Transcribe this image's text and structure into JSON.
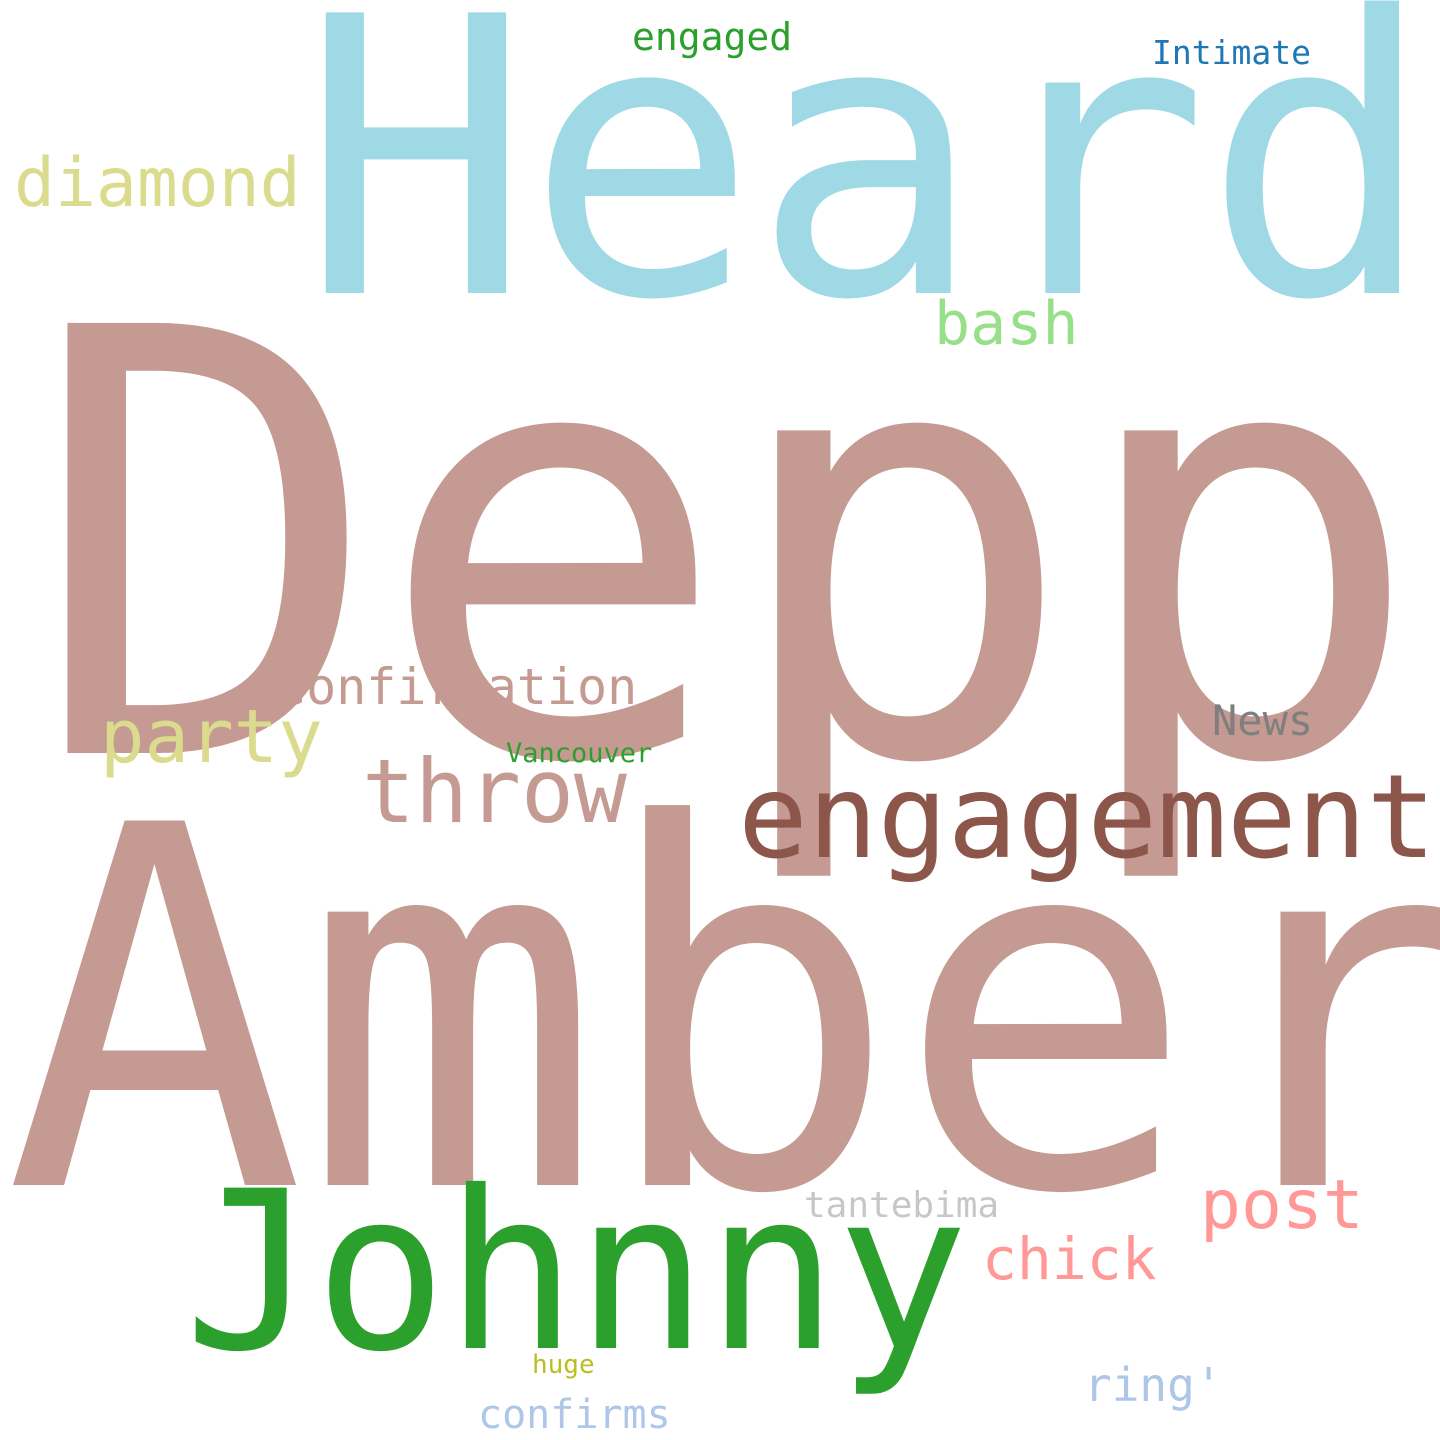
{
  "words": [
    {
      "key": "depp",
      "text": "Depp",
      "color": "#c49a92"
    },
    {
      "key": "amber",
      "text": "Amber",
      "color": "#c49a92"
    },
    {
      "key": "heard",
      "text": "Heard",
      "color": "#9fd9e5"
    },
    {
      "key": "johnny",
      "text": "Johnny",
      "color": "#2ca02c"
    },
    {
      "key": "engagement",
      "text": "engagement",
      "color": "#8c564b"
    },
    {
      "key": "throw",
      "text": "throw",
      "color": "#c49a92"
    },
    {
      "key": "post",
      "text": "post",
      "color": "#ff9896"
    },
    {
      "key": "party",
      "text": "party",
      "color": "#dbdb8d"
    },
    {
      "key": "chick",
      "text": "chick",
      "color": "#ff9896"
    },
    {
      "key": "diamond",
      "text": "diamond",
      "color": "#dbdb8d"
    },
    {
      "key": "confirmation",
      "text": "confirmation",
      "color": "#c49a92"
    },
    {
      "key": "bash",
      "text": "bash",
      "color": "#98df8a"
    },
    {
      "key": "ring",
      "text": "ring'",
      "color": "#aec7e8"
    },
    {
      "key": "confirms",
      "text": "confirms",
      "color": "#aec7e8"
    },
    {
      "key": "news",
      "text": "News",
      "color": "#7f7f7f"
    },
    {
      "key": "tantebima",
      "text": "tantebima",
      "color": "#c7c7c7"
    },
    {
      "key": "engaged",
      "text": "engaged",
      "color": "#2ca02c"
    },
    {
      "key": "intimate",
      "text": "Intimate",
      "color": "#1f77b4"
    },
    {
      "key": "vancouver",
      "text": "Vancouver",
      "color": "#2ca02c"
    },
    {
      "key": "huge",
      "text": "huge",
      "color": "#bcbd22"
    }
  ]
}
